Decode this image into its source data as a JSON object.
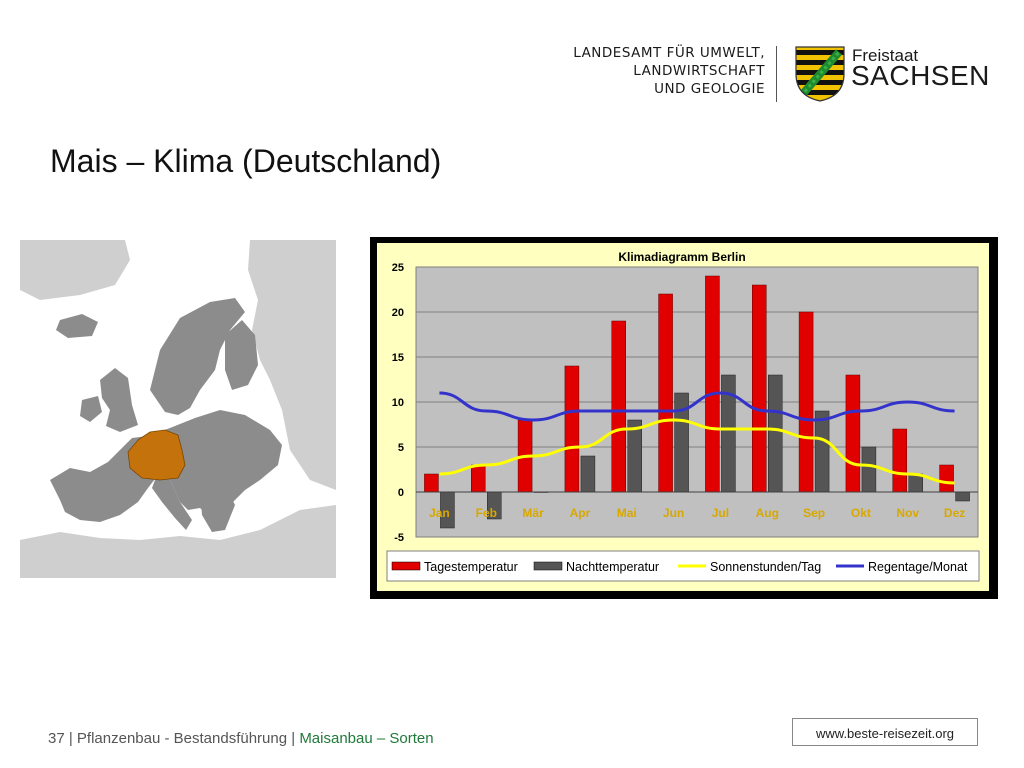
{
  "header": {
    "org_lines": [
      "LANDESAMT FÜR UMWELT,",
      "LANDWIRTSCHAFT",
      "UND GEOLOGIE"
    ],
    "state_small": "Freistaat",
    "state_big": "SACHSEN"
  },
  "slide": {
    "title": "Mais – Klima (Deutschland)"
  },
  "colors": {
    "germany": "#c4720c",
    "europe": "#8c8c8c",
    "europe_light": "#cfcfcf",
    "bar_day": "#e00000",
    "bar_night": "#555555",
    "line_sun": "#ffff00",
    "line_rain": "#3333cc",
    "chart_bg": "#ffffc0",
    "plot_bg": "#c0c0c0",
    "month_label": "#d8a800",
    "footer_accent": "#1f7a3a"
  },
  "chart_data": {
    "type": "bar",
    "title": "Klimadiagramm Berlin",
    "categories": [
      "Jan",
      "Feb",
      "Mär",
      "Apr",
      "Mai",
      "Jun",
      "Jul",
      "Aug",
      "Sep",
      "Okt",
      "Nov",
      "Dez"
    ],
    "ylim": [
      -5,
      25
    ],
    "yticks": [
      "25",
      "20",
      "15",
      "10",
      "5",
      "0",
      "-5"
    ],
    "grid": true,
    "legend_position": "bottom",
    "series": [
      {
        "name": "Tagestemperatur",
        "kind": "bar",
        "values": [
          2,
          3,
          8,
          14,
          19,
          22,
          24,
          23,
          20,
          13,
          7,
          3
        ]
      },
      {
        "name": "Nachttemperatur",
        "kind": "bar",
        "values": [
          -4,
          -3,
          0,
          4,
          8,
          11,
          13,
          13,
          9,
          5,
          2,
          -1
        ]
      },
      {
        "name": "Sonnenstunden/Tag",
        "kind": "line",
        "values": [
          2,
          3,
          4,
          5,
          7,
          8,
          7,
          7,
          6,
          3,
          2,
          1
        ]
      },
      {
        "name": "Regentage/Monat",
        "kind": "line",
        "values": [
          11,
          9,
          8,
          9,
          9,
          9,
          11,
          9,
          8,
          9,
          10,
          9
        ]
      }
    ]
  },
  "footer": {
    "page_number": "37",
    "sep1": " | ",
    "path": "Pflanzenbau - Bestandsführung",
    "sep2": " | ",
    "current": "Maisanbau – Sorten"
  },
  "source": {
    "text": "www.beste-reisezeit.org"
  }
}
